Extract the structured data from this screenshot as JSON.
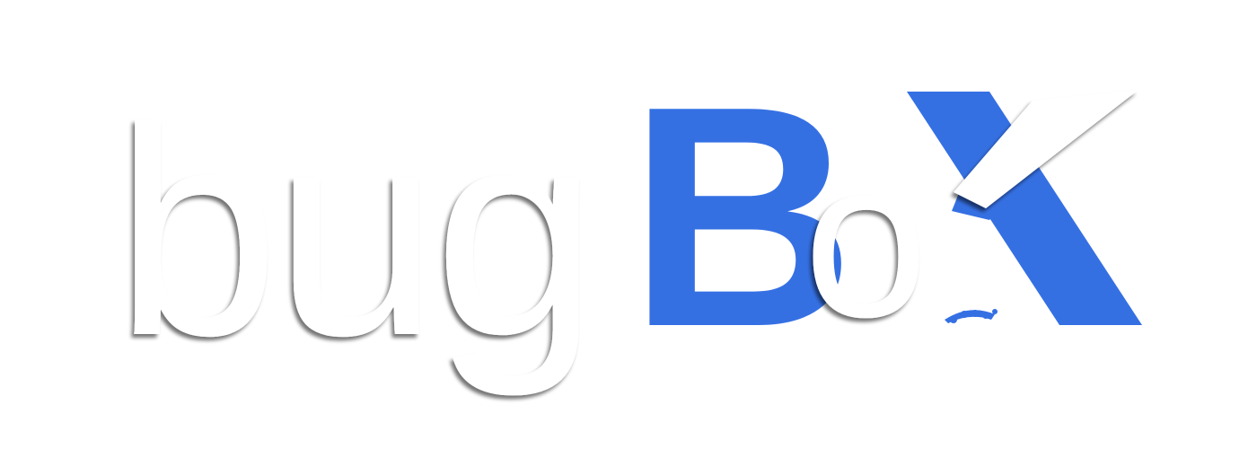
{
  "logo": {
    "text_light": "bug",
    "text_bold_b": "B",
    "text_light_o": "o",
    "text_bold_x": "X",
    "full_text": "bugBoX",
    "colors": {
      "brand_blue": "#3570e3",
      "letter_white": "#ffffff",
      "background": "#ffffff",
      "shadow": "rgba(0,0,0,0.45)"
    },
    "icon": "bug-feet-icon"
  }
}
